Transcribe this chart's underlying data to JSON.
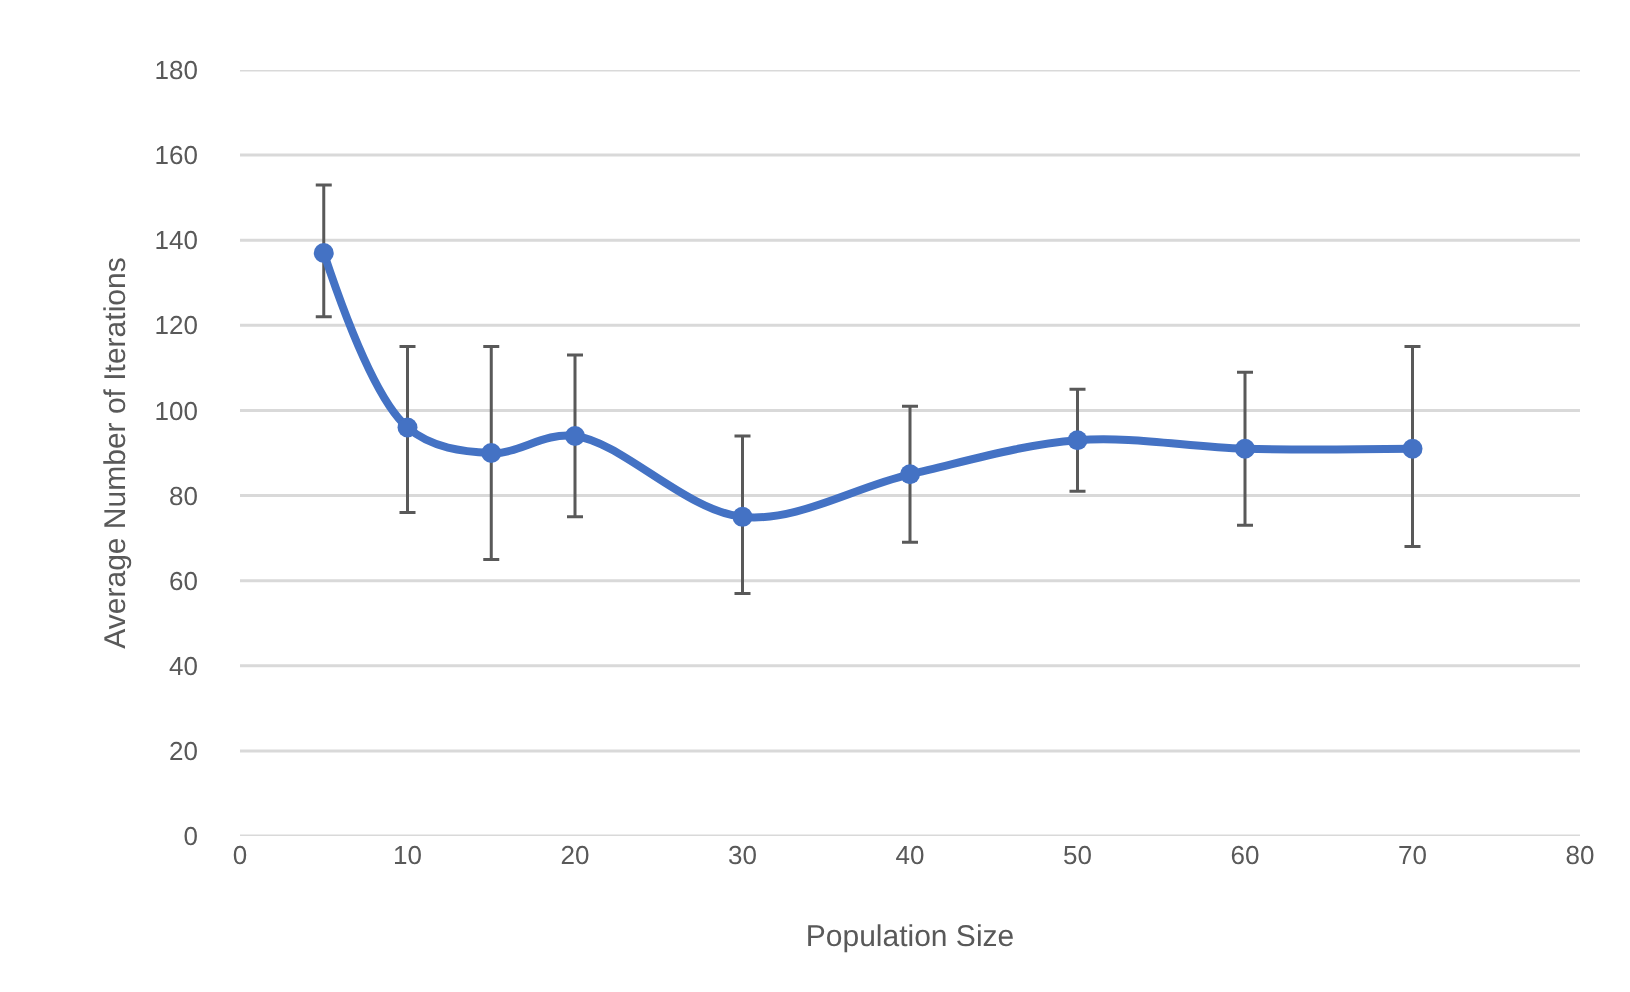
{
  "chart_data": {
    "type": "line",
    "xlabel": "Population Size",
    "ylabel": "Average Number of Iterations",
    "x": [
      5,
      10,
      15,
      20,
      30,
      40,
      50,
      60,
      70
    ],
    "series": [
      {
        "color": "#4472c4",
        "values": [
          137,
          96,
          90,
          94,
          75,
          85,
          93,
          91,
          91
        ],
        "errors": [
          [
            122,
            153
          ],
          [
            76,
            115
          ],
          [
            65,
            115
          ],
          [
            75,
            113
          ],
          [
            57,
            94
          ],
          [
            69,
            101
          ],
          [
            81,
            105
          ],
          [
            73,
            109
          ],
          [
            68,
            115
          ]
        ]
      }
    ],
    "xlim": [
      0,
      80
    ],
    "xticks": [
      0,
      10,
      20,
      30,
      40,
      50,
      60,
      70,
      80
    ],
    "ylim": [
      0,
      180
    ],
    "yticks": [
      0,
      20,
      40,
      60,
      80,
      100,
      120,
      140,
      160,
      180
    ],
    "grid": "y",
    "marker": "circle",
    "line_style": "solid"
  }
}
